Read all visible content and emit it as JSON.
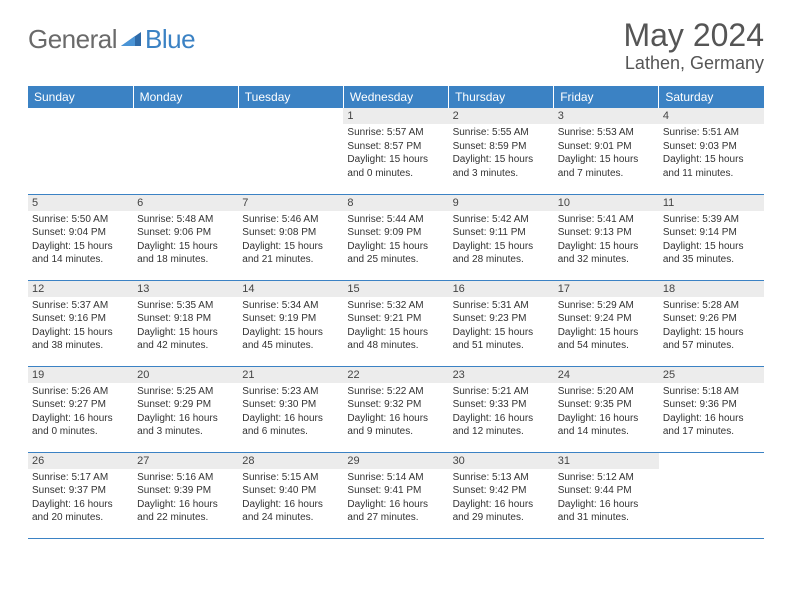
{
  "brand": {
    "part1": "General",
    "part2": "Blue"
  },
  "title": "May 2024",
  "location": "Lathen, Germany",
  "colors": {
    "header_bg": "#3b82c4",
    "header_text": "#ffffff",
    "daynum_bg": "#ececec",
    "border": "#3b82c4",
    "body_text": "#333333",
    "title_text": "#555555"
  },
  "dayNames": [
    "Sunday",
    "Monday",
    "Tuesday",
    "Wednesday",
    "Thursday",
    "Friday",
    "Saturday"
  ],
  "weeks": [
    [
      {
        "n": "",
        "sr": "",
        "ss": "",
        "dl": ""
      },
      {
        "n": "",
        "sr": "",
        "ss": "",
        "dl": ""
      },
      {
        "n": "",
        "sr": "",
        "ss": "",
        "dl": ""
      },
      {
        "n": "1",
        "sr": "Sunrise: 5:57 AM",
        "ss": "Sunset: 8:57 PM",
        "dl": "Daylight: 15 hours and 0 minutes."
      },
      {
        "n": "2",
        "sr": "Sunrise: 5:55 AM",
        "ss": "Sunset: 8:59 PM",
        "dl": "Daylight: 15 hours and 3 minutes."
      },
      {
        "n": "3",
        "sr": "Sunrise: 5:53 AM",
        "ss": "Sunset: 9:01 PM",
        "dl": "Daylight: 15 hours and 7 minutes."
      },
      {
        "n": "4",
        "sr": "Sunrise: 5:51 AM",
        "ss": "Sunset: 9:03 PM",
        "dl": "Daylight: 15 hours and 11 minutes."
      }
    ],
    [
      {
        "n": "5",
        "sr": "Sunrise: 5:50 AM",
        "ss": "Sunset: 9:04 PM",
        "dl": "Daylight: 15 hours and 14 minutes."
      },
      {
        "n": "6",
        "sr": "Sunrise: 5:48 AM",
        "ss": "Sunset: 9:06 PM",
        "dl": "Daylight: 15 hours and 18 minutes."
      },
      {
        "n": "7",
        "sr": "Sunrise: 5:46 AM",
        "ss": "Sunset: 9:08 PM",
        "dl": "Daylight: 15 hours and 21 minutes."
      },
      {
        "n": "8",
        "sr": "Sunrise: 5:44 AM",
        "ss": "Sunset: 9:09 PM",
        "dl": "Daylight: 15 hours and 25 minutes."
      },
      {
        "n": "9",
        "sr": "Sunrise: 5:42 AM",
        "ss": "Sunset: 9:11 PM",
        "dl": "Daylight: 15 hours and 28 minutes."
      },
      {
        "n": "10",
        "sr": "Sunrise: 5:41 AM",
        "ss": "Sunset: 9:13 PM",
        "dl": "Daylight: 15 hours and 32 minutes."
      },
      {
        "n": "11",
        "sr": "Sunrise: 5:39 AM",
        "ss": "Sunset: 9:14 PM",
        "dl": "Daylight: 15 hours and 35 minutes."
      }
    ],
    [
      {
        "n": "12",
        "sr": "Sunrise: 5:37 AM",
        "ss": "Sunset: 9:16 PM",
        "dl": "Daylight: 15 hours and 38 minutes."
      },
      {
        "n": "13",
        "sr": "Sunrise: 5:35 AM",
        "ss": "Sunset: 9:18 PM",
        "dl": "Daylight: 15 hours and 42 minutes."
      },
      {
        "n": "14",
        "sr": "Sunrise: 5:34 AM",
        "ss": "Sunset: 9:19 PM",
        "dl": "Daylight: 15 hours and 45 minutes."
      },
      {
        "n": "15",
        "sr": "Sunrise: 5:32 AM",
        "ss": "Sunset: 9:21 PM",
        "dl": "Daylight: 15 hours and 48 minutes."
      },
      {
        "n": "16",
        "sr": "Sunrise: 5:31 AM",
        "ss": "Sunset: 9:23 PM",
        "dl": "Daylight: 15 hours and 51 minutes."
      },
      {
        "n": "17",
        "sr": "Sunrise: 5:29 AM",
        "ss": "Sunset: 9:24 PM",
        "dl": "Daylight: 15 hours and 54 minutes."
      },
      {
        "n": "18",
        "sr": "Sunrise: 5:28 AM",
        "ss": "Sunset: 9:26 PM",
        "dl": "Daylight: 15 hours and 57 minutes."
      }
    ],
    [
      {
        "n": "19",
        "sr": "Sunrise: 5:26 AM",
        "ss": "Sunset: 9:27 PM",
        "dl": "Daylight: 16 hours and 0 minutes."
      },
      {
        "n": "20",
        "sr": "Sunrise: 5:25 AM",
        "ss": "Sunset: 9:29 PM",
        "dl": "Daylight: 16 hours and 3 minutes."
      },
      {
        "n": "21",
        "sr": "Sunrise: 5:23 AM",
        "ss": "Sunset: 9:30 PM",
        "dl": "Daylight: 16 hours and 6 minutes."
      },
      {
        "n": "22",
        "sr": "Sunrise: 5:22 AM",
        "ss": "Sunset: 9:32 PM",
        "dl": "Daylight: 16 hours and 9 minutes."
      },
      {
        "n": "23",
        "sr": "Sunrise: 5:21 AM",
        "ss": "Sunset: 9:33 PM",
        "dl": "Daylight: 16 hours and 12 minutes."
      },
      {
        "n": "24",
        "sr": "Sunrise: 5:20 AM",
        "ss": "Sunset: 9:35 PM",
        "dl": "Daylight: 16 hours and 14 minutes."
      },
      {
        "n": "25",
        "sr": "Sunrise: 5:18 AM",
        "ss": "Sunset: 9:36 PM",
        "dl": "Daylight: 16 hours and 17 minutes."
      }
    ],
    [
      {
        "n": "26",
        "sr": "Sunrise: 5:17 AM",
        "ss": "Sunset: 9:37 PM",
        "dl": "Daylight: 16 hours and 20 minutes."
      },
      {
        "n": "27",
        "sr": "Sunrise: 5:16 AM",
        "ss": "Sunset: 9:39 PM",
        "dl": "Daylight: 16 hours and 22 minutes."
      },
      {
        "n": "28",
        "sr": "Sunrise: 5:15 AM",
        "ss": "Sunset: 9:40 PM",
        "dl": "Daylight: 16 hours and 24 minutes."
      },
      {
        "n": "29",
        "sr": "Sunrise: 5:14 AM",
        "ss": "Sunset: 9:41 PM",
        "dl": "Daylight: 16 hours and 27 minutes."
      },
      {
        "n": "30",
        "sr": "Sunrise: 5:13 AM",
        "ss": "Sunset: 9:42 PM",
        "dl": "Daylight: 16 hours and 29 minutes."
      },
      {
        "n": "31",
        "sr": "Sunrise: 5:12 AM",
        "ss": "Sunset: 9:44 PM",
        "dl": "Daylight: 16 hours and 31 minutes."
      },
      {
        "n": "",
        "sr": "",
        "ss": "",
        "dl": ""
      }
    ]
  ]
}
